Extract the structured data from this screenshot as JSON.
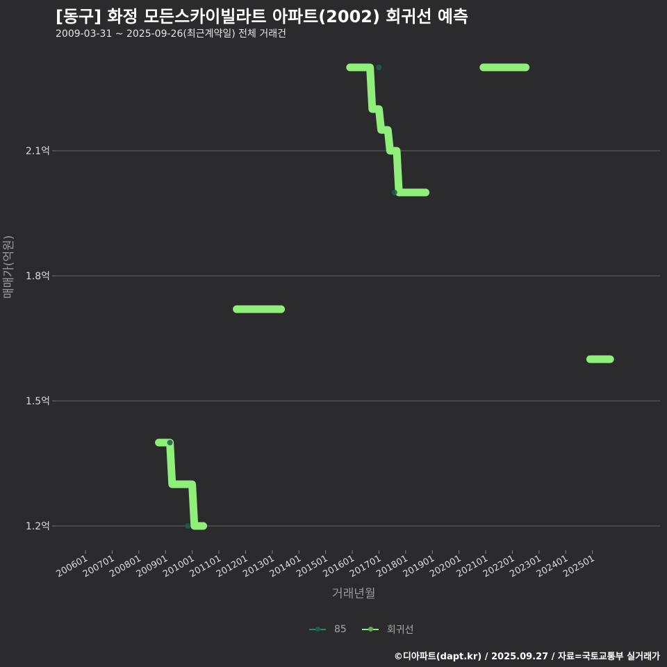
{
  "header": {
    "title": "[동구] 화정 모든스카이빌라트 아파트(2002) 회귀선 예측",
    "subtitle": "2009-03-31 ~ 2025-09-26(최근계약일) 전체 거래건"
  },
  "axes": {
    "ylabel": "매매가(억원)",
    "xlabel": "거래년월"
  },
  "legend": {
    "items": [
      {
        "label": "85",
        "color": "#1f8a7a"
      },
      {
        "label": "회귀선",
        "color": "#90ee7a"
      }
    ]
  },
  "footer": {
    "credit": "©디아파트(dapt.kr) / 2025.09.27 / 자료=국토교통부 실거래가"
  },
  "chart_data": {
    "type": "line",
    "title": "[동구] 화정 모든스카이빌라트 아파트(2002) 회귀선 예측",
    "subtitle": "2009-03-31 ~ 2025-09-26(최근계약일) 전체 거래건",
    "xlabel": "거래년월",
    "ylabel": "매매가(억원)",
    "x_ticks": [
      "200601",
      "200701",
      "200801",
      "200901",
      "201001",
      "201101",
      "201201",
      "201301",
      "201401",
      "201501",
      "201601",
      "201701",
      "201801",
      "201901",
      "202001",
      "202101",
      "202201",
      "202301",
      "202401",
      "202501"
    ],
    "y_ticks": [
      "1.2억",
      "1.5억",
      "1.8억",
      "2.1억"
    ],
    "ylim": [
      1.12,
      2.38
    ],
    "grid": "horizontal",
    "legend_position": "bottom",
    "series": [
      {
        "name": "85",
        "kind": "scatter",
        "points": [
          {
            "x": "2009-03",
            "y": 1.4
          },
          {
            "x": "2009-11",
            "y": 1.2
          },
          {
            "x": "2017-01",
            "y": 2.3
          },
          {
            "x": "2017-08",
            "y": 2.0
          }
        ]
      },
      {
        "name": "회귀선",
        "kind": "step",
        "segments": [
          [
            {
              "x": "2008-10",
              "y": 1.4
            },
            {
              "x": "2009-03",
              "y": 1.4
            },
            {
              "x": "2009-04",
              "y": 1.3
            },
            {
              "x": "2010-01",
              "y": 1.3
            },
            {
              "x": "2010-02",
              "y": 1.2
            },
            {
              "x": "2010-06",
              "y": 1.2
            }
          ],
          [
            {
              "x": "2011-09",
              "y": 1.72
            },
            {
              "x": "2013-05",
              "y": 1.72
            }
          ],
          [
            {
              "x": "2015-12",
              "y": 2.3
            },
            {
              "x": "2016-09",
              "y": 2.3
            },
            {
              "x": "2016-10",
              "y": 2.2
            },
            {
              "x": "2017-01",
              "y": 2.2
            },
            {
              "x": "2017-02",
              "y": 2.15
            },
            {
              "x": "2017-05",
              "y": 2.15
            },
            {
              "x": "2017-06",
              "y": 2.1
            },
            {
              "x": "2017-09",
              "y": 2.1
            },
            {
              "x": "2017-10",
              "y": 2.0
            },
            {
              "x": "2018-10",
              "y": 2.0
            }
          ],
          [
            {
              "x": "2020-12",
              "y": 2.3
            },
            {
              "x": "2022-07",
              "y": 2.3
            }
          ],
          [
            {
              "x": "2024-12",
              "y": 1.6
            },
            {
              "x": "2025-09",
              "y": 1.6
            }
          ]
        ]
      }
    ]
  }
}
